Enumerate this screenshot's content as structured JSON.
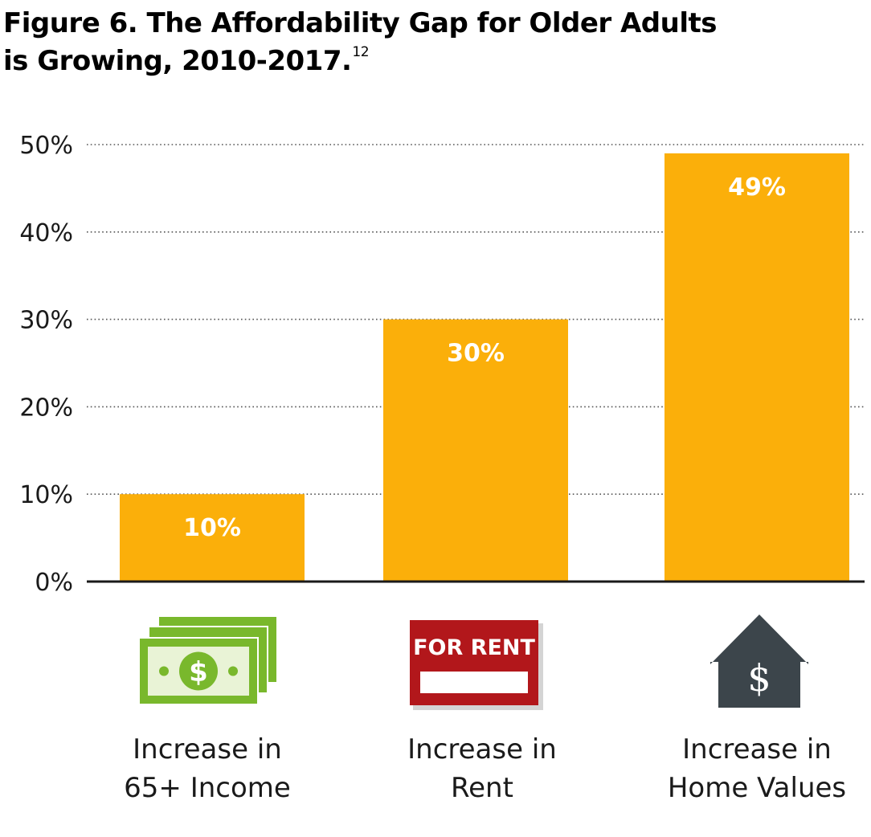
{
  "title": {
    "line1": "Figure 6. The Affordability Gap for Older Adults",
    "line2": "is Growing, 2010-2017.",
    "footnote": "12"
  },
  "chart_data": {
    "type": "bar",
    "categories": [
      [
        "Increase in",
        "65+ Income"
      ],
      [
        "Increase in",
        "Rent"
      ],
      [
        "Increase in",
        "Home Values"
      ]
    ],
    "values": [
      10,
      30,
      49
    ],
    "data_labels": [
      "10%",
      "30%",
      "49%"
    ],
    "title": "Figure 6. The Affordability Gap for Older Adults is Growing, 2010-2017.",
    "xlabel": "",
    "ylabel": "",
    "ylim": [
      0,
      50
    ],
    "yticks": [
      0,
      10,
      20,
      30,
      40,
      50
    ],
    "ytick_labels": [
      "0%",
      "10%",
      "20%",
      "30%",
      "40%",
      "50%"
    ],
    "grid": "dotted horizontal",
    "legend": "none"
  },
  "icons": {
    "category_0": "money-stack-icon",
    "category_1": "for-rent-sign-icon",
    "category_2": "house-dollar-icon",
    "sign_text": "FOR RENT",
    "house_symbol": "$",
    "money_symbol": "$"
  },
  "colors": {
    "bar": "#FBAF0A",
    "axis": "#1a1a1a",
    "grid": "#555555",
    "money_green": "#79B82C",
    "money_light": "#E9F3D6",
    "sign_red": "#B2171B",
    "house_gray": "#3C454B"
  }
}
